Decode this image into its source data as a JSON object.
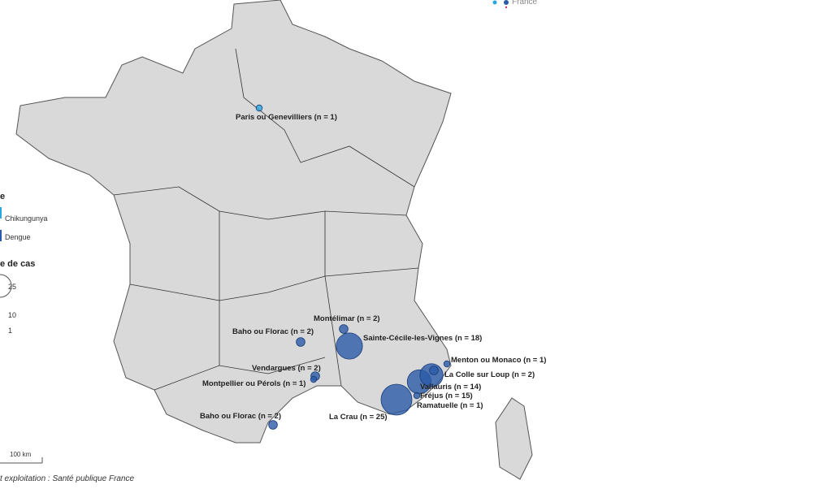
{
  "legend": {
    "type_title_fragment": "e",
    "types": [
      {
        "label": "Chikungunya",
        "color": "#29a8e0"
      },
      {
        "label": "Dengue",
        "color": "#2a5aa8"
      }
    ],
    "size_title_fragment": "e de cas",
    "sizes": [
      "25",
      "10",
      "1"
    ],
    "inset_label": "France"
  },
  "scale_bar": "100 km",
  "source": "t exploitation : Santé publique France",
  "colors": {
    "land": "#d9d9d9",
    "border": "#555555",
    "dengue": "#2a5aa8",
    "chikungunya": "#29a8e0"
  },
  "cases": [
    {
      "place": "Paris ou Genevilliers (n = 1)",
      "n": 1,
      "type": "Chikungunya"
    },
    {
      "place": "Montélimar (n = 2)",
      "n": 2,
      "type": "Dengue"
    },
    {
      "place": "Sainte-Cécile-les-Vignes (n = 18)",
      "n": 18,
      "type": "Dengue"
    },
    {
      "place": "Baho ou Florac (n = 2)",
      "n": 2,
      "type": "Dengue"
    },
    {
      "place": "Vendargues (n = 2)",
      "n": 2,
      "type": "Dengue"
    },
    {
      "place": "Montpellier ou Pérols (n = 1)",
      "n": 1,
      "type": "Dengue"
    },
    {
      "place": "Baho ou Florac (n = 2)",
      "n": 2,
      "type": "Dengue"
    },
    {
      "place": "La Crau (n = 25)",
      "n": 25,
      "type": "Dengue"
    },
    {
      "place": "Ramatuelle (n = 1)",
      "n": 1,
      "type": "Dengue"
    },
    {
      "place": "Fréjus (n = 15)",
      "n": 15,
      "type": "Dengue"
    },
    {
      "place": "Vallauris (n = 14)",
      "n": 14,
      "type": "Dengue"
    },
    {
      "place": "La Colle sur Loup (n = 2)",
      "n": 2,
      "type": "Dengue"
    },
    {
      "place": "Menton ou Monaco (n = 1)",
      "n": 1,
      "type": "Dengue"
    }
  ]
}
